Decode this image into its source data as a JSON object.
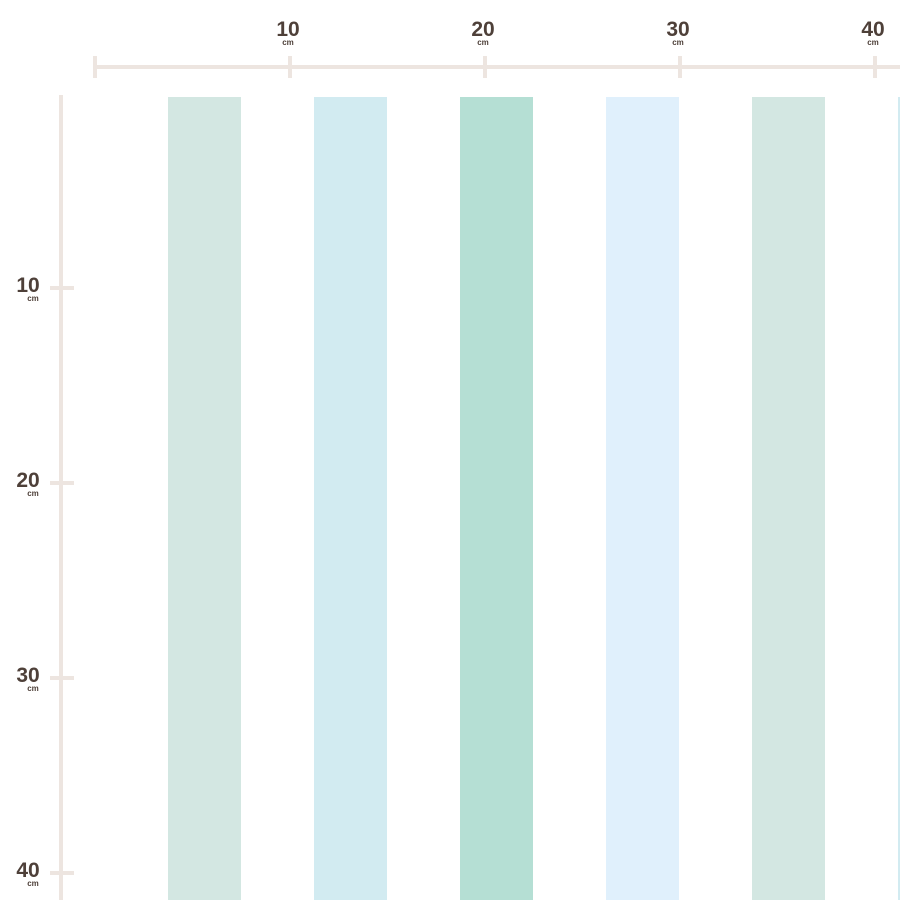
{
  "ruler": {
    "labels": [
      "10",
      "20",
      "30",
      "40"
    ],
    "unit": "cm"
  }
}
